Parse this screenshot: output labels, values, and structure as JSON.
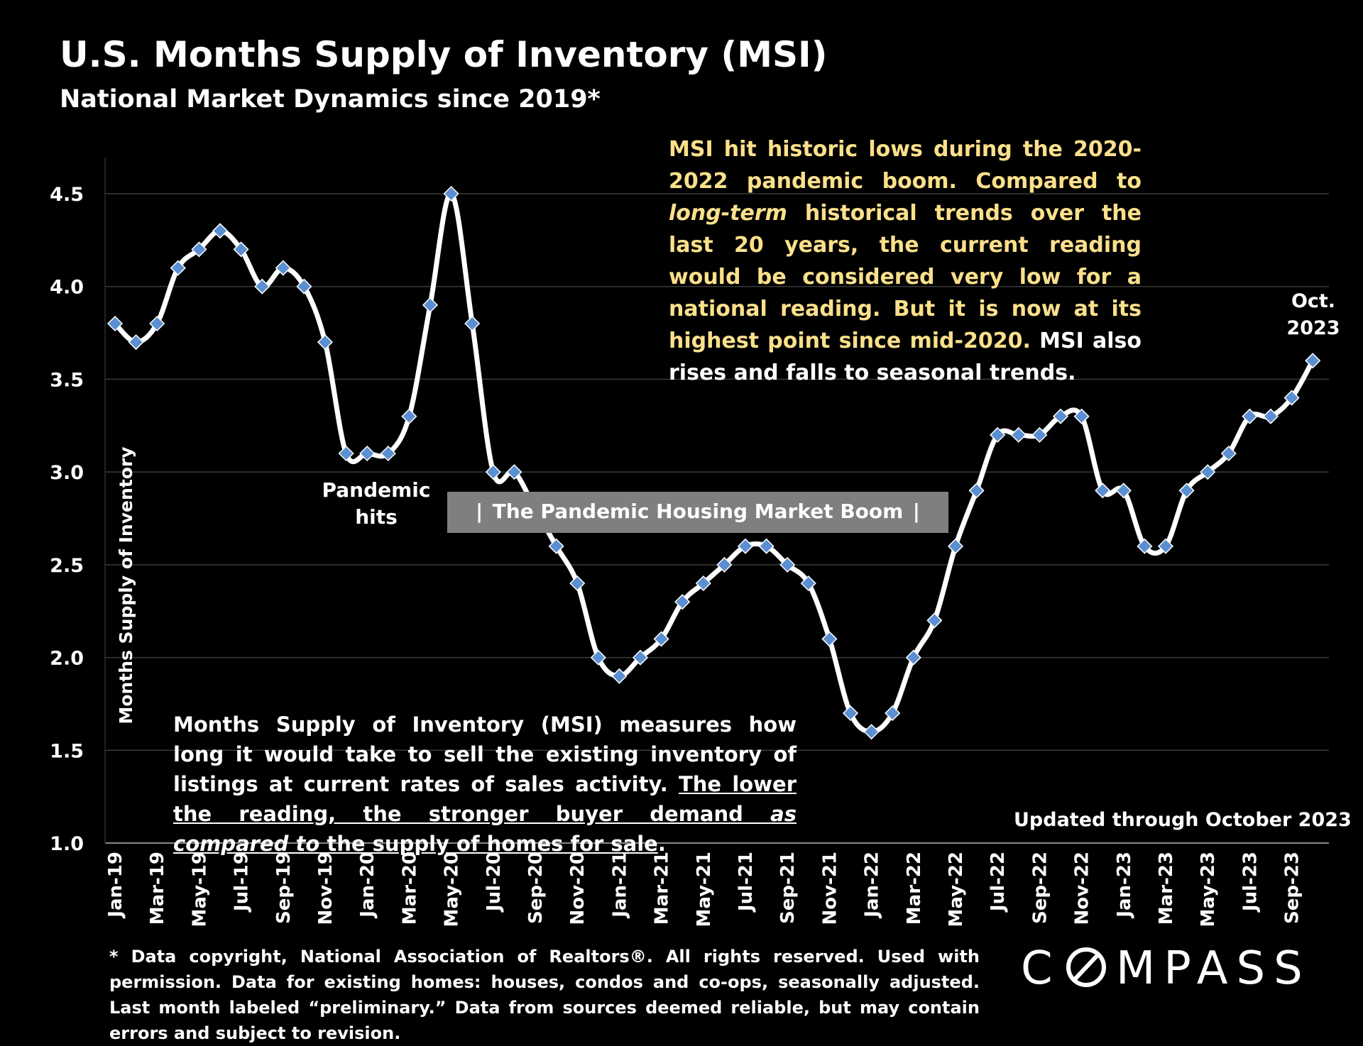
{
  "title": "U.S. Months Supply of Inventory (MSI)",
  "subtitle": "National Market Dynamics since 2019*",
  "annotations": {
    "top_note_part1": "MSI hit historic lows during the 2020-2022 pandemic boom. Compared to ",
    "top_note_italic": "long-term",
    "top_note_part2": " historical trends over the last 20 years, the current reading would be considered very low for a national reading. But it is now at its highest point since mid-2020.",
    "top_note_white": "MSI also rises and falls to seasonal trends.",
    "bottom_note_part1": "Months Supply of Inventory (MSI) measures how long it would take to sell the existing inventory of listings at current rates of sales activity. ",
    "bottom_note_ul1": "The lower the reading, the stronger buyer demand ",
    "bottom_note_ul_italic": "as compared to",
    "bottom_note_ul2": " the supply of homes for sale",
    "bottom_note_end": ".",
    "pandemic_line1": "Pandemic",
    "pandemic_line2": "hits",
    "boom_bar_left": "|",
    "boom_label": "The Pandemic Housing Market Boom",
    "boom_bar_right": "|",
    "oct_line1": "Oct.",
    "oct_line2": "2023",
    "updated": "Updated through October 2023"
  },
  "footnote": "* Data copyright, National Association of Realtors®. All rights reserved. Used with permission. Data for existing homes: houses, condos and co-ops, seasonally adjusted. Last month labeled “preliminary.” Data from sources deemed reliable, but may contain errors and subject to revision.",
  "logo": {
    "text": "COMPASS"
  },
  "chart_data": {
    "type": "line",
    "ylabel": "Months Supply of Inventory",
    "ylim": [
      1.0,
      4.5
    ],
    "yticks": [
      "1.0",
      "1.5",
      "2.0",
      "2.5",
      "3.0",
      "3.5",
      "4.0",
      "4.5"
    ],
    "grid": true,
    "x": [
      "Jan-19",
      "Feb-19",
      "Mar-19",
      "Apr-19",
      "May-19",
      "Jun-19",
      "Jul-19",
      "Aug-19",
      "Sep-19",
      "Oct-19",
      "Nov-19",
      "Dec-19",
      "Jan-20",
      "Feb-20",
      "Mar-20",
      "Apr-20",
      "May-20",
      "Jun-20",
      "Jul-20",
      "Aug-20",
      "Sep-20",
      "Oct-20",
      "Nov-20",
      "Dec-20",
      "Jan-21",
      "Feb-21",
      "Mar-21",
      "Apr-21",
      "May-21",
      "Jun-21",
      "Jul-21",
      "Aug-21",
      "Sep-21",
      "Oct-21",
      "Nov-21",
      "Dec-21",
      "Jan-22",
      "Feb-22",
      "Mar-22",
      "Apr-22",
      "May-22",
      "Jun-22",
      "Jul-22",
      "Aug-22",
      "Sep-22",
      "Oct-22",
      "Nov-22",
      "Dec-22",
      "Jan-23",
      "Feb-23",
      "Mar-23",
      "Apr-23",
      "May-23",
      "Jun-23",
      "Jul-23",
      "Aug-23",
      "Sep-23",
      "Oct-23"
    ],
    "xtick_labels": [
      "Jan-19",
      "Mar-19",
      "May-19",
      "Jul-19",
      "Sep-19",
      "Nov-19",
      "Jan-20",
      "Mar-20",
      "May-20",
      "Jul-20",
      "Sep-20",
      "Nov-20",
      "Jan-21",
      "Mar-21",
      "May-21",
      "Jul-21",
      "Sep-21",
      "Nov-21",
      "Jan-22",
      "Mar-22",
      "May-22",
      "Jul-22",
      "Sep-22",
      "Nov-22",
      "Jan-23",
      "Mar-23",
      "May-23",
      "Jul-23",
      "Sep-23"
    ],
    "values": [
      3.8,
      3.7,
      3.8,
      4.1,
      4.2,
      4.3,
      4.2,
      4.0,
      4.1,
      4.0,
      3.7,
      3.1,
      3.1,
      3.1,
      3.3,
      3.9,
      4.5,
      3.8,
      3.0,
      3.0,
      2.8,
      2.6,
      2.4,
      2.0,
      1.9,
      2.0,
      2.1,
      2.3,
      2.4,
      2.5,
      2.6,
      2.6,
      2.5,
      2.4,
      2.1,
      1.7,
      1.6,
      1.7,
      2.0,
      2.2,
      2.6,
      2.9,
      3.2,
      3.2,
      3.2,
      3.3,
      3.3,
      2.9,
      2.9,
      2.6,
      2.6,
      2.9,
      3.0,
      3.1,
      3.3,
      3.3,
      3.4,
      3.6
    ],
    "line_color": "#ffffff",
    "marker_color": "#5b8fd1"
  }
}
